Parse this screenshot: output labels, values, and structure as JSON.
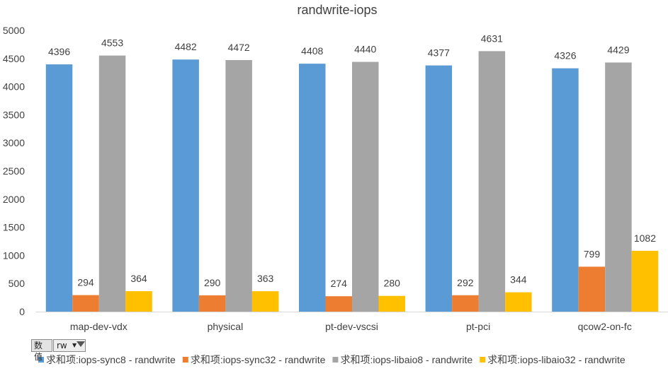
{
  "chart_data": {
    "type": "bar",
    "title": "randwrite-iops",
    "categories": [
      "map-dev-vdx",
      "physical",
      "pt-dev-vscsi",
      "pt-pci",
      "qcow2-on-fc"
    ],
    "series": [
      {
        "name": "求和项:iops-sync8 - randwrite",
        "color": "#5B9BD5",
        "values": [
          4396,
          4482,
          4408,
          4377,
          4326
        ]
      },
      {
        "name": "求和项:iops-sync32 - randwrite",
        "color": "#ED7D31",
        "values": [
          294,
          290,
          274,
          292,
          799
        ]
      },
      {
        "name": "求和项:iops-libaio8 - randwrite",
        "color": "#A5A5A5",
        "values": [
          4553,
          4472,
          4440,
          4631,
          4429
        ]
      },
      {
        "name": "求和项:iops-libaio32 - randwrite",
        "color": "#FFC000",
        "values": [
          364,
          363,
          280,
          344,
          1082
        ]
      }
    ],
    "ylim": [
      0,
      5000
    ],
    "yticks": [
      0,
      500,
      1000,
      1500,
      2000,
      2500,
      3000,
      3500,
      4000,
      4500,
      5000
    ],
    "xlabel": "",
    "ylabel": "",
    "grid": false,
    "legend_position": "bottom"
  },
  "pivot_buttons": {
    "values_label": "数值",
    "field_label": "rw",
    "dropdown_arrow_icon": "dropdown-arrow-icon",
    "filter_icon": "filter-icon"
  }
}
